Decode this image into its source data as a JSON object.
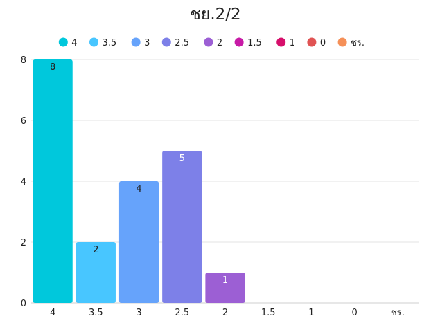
{
  "chart_data": {
    "type": "bar",
    "title": "ชย.2/2",
    "categories": [
      "4",
      "3.5",
      "3",
      "2.5",
      "2",
      "1.5",
      "1",
      "0",
      "ชร."
    ],
    "values": [
      8,
      2,
      4,
      5,
      1,
      0,
      0,
      0,
      0
    ],
    "colors": [
      "#00c8dc",
      "#48c6ff",
      "#66a3fb",
      "#7d80e8",
      "#9c5fd4",
      "#c71aa6",
      "#d60f6b",
      "#e05353",
      "#f59058"
    ],
    "label_colors": [
      "#222222",
      "#222222",
      "#222222",
      "#ffffff",
      "#ffffff",
      "#ffffff",
      "#ffffff",
      "#ffffff",
      "#ffffff"
    ],
    "ylim": [
      0,
      8
    ],
    "yticks": [
      "0",
      "2",
      "4",
      "6",
      "8"
    ],
    "legend": {
      "placement": "top",
      "entries": [
        "4",
        "3.5",
        "3",
        "2.5",
        "2",
        "1.5",
        "1",
        "0",
        "ชร."
      ]
    },
    "grid": true,
    "xlabel": "",
    "ylabel": ""
  }
}
